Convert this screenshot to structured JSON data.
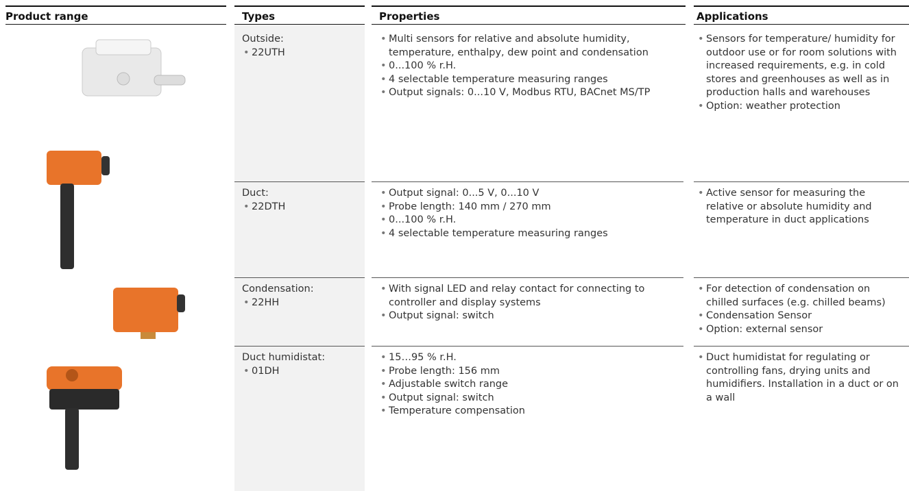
{
  "header": {
    "columns": [
      "Product range",
      "Types",
      "Properties",
      "Applications"
    ]
  },
  "rows": [
    {
      "type_label": "Outside:",
      "types": [
        "22UTH"
      ],
      "properties": [
        "Multi sensors for relative and absolute humidity, temperature, enthalpy, dew point and condensation",
        "0...100 % r.H.",
        "4 selectable temperature measuring ranges",
        "Output signals: 0...10 V, Modbus RTU, BACnet MS/TP"
      ],
      "applications": [
        "Sensors for temperature/ humidity for outdoor use or for room solutions with increased requirements, e.g. in cold stores and greenhouses as well as in production halls and warehouses",
        "Option: weather protection"
      ]
    },
    {
      "type_label": "Duct:",
      "types": [
        "22DTH"
      ],
      "properties": [
        "Output signal: 0...5 V, 0...10 V",
        "Probe length: 140 mm / 270 mm",
        "0...100 % r.H.",
        "4 selectable temperature measuring ranges"
      ],
      "applications": [
        "Active sensor for measuring the relative or absolute humidity and temperature in duct applications"
      ]
    },
    {
      "type_label": "Condensation:",
      "types": [
        "22HH"
      ],
      "properties": [
        "With signal LED and relay contact for connecting to controller and display systems",
        "Output signal: switch"
      ],
      "applications": [
        "For detection of condensation on chilled surfaces (e.g. chilled beams)",
        "Condensation Sensor",
        "Option: external sensor"
      ]
    },
    {
      "type_label": "Duct humidistat:",
      "types": [
        "01DH"
      ],
      "properties": [
        "15…95 % r.H.",
        "Probe length: 156 mm",
        "Adjustable switch range",
        "Output signal: switch",
        "Temperature compensation"
      ],
      "applications": [
        "Duct humidistat for regulating or controlling fans, drying units and humidifiers. Installation in a duct or on a wall"
      ]
    }
  ]
}
